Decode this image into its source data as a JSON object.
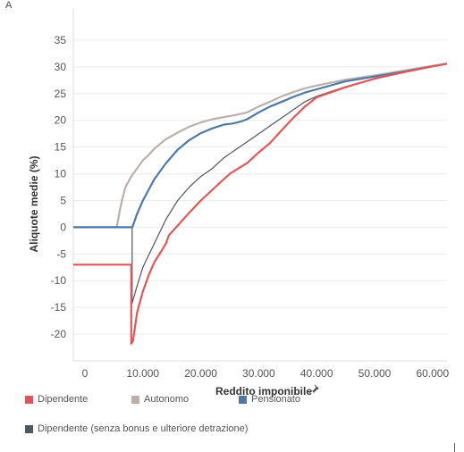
{
  "corner_mark": "A",
  "chart_data": {
    "type": "line",
    "xlabel": "Reddito imponibile",
    "xlabel_icon": "pin-icon",
    "ylabel": "Aliquote medie (%)",
    "xlim": [
      -2000,
      62500
    ],
    "ylim": [
      -25,
      37
    ],
    "x_ticks": [
      {
        "value": 0,
        "label": "0"
      },
      {
        "value": 10000,
        "label": "10.000"
      },
      {
        "value": 20000,
        "label": "20.000"
      },
      {
        "value": 30000,
        "label": "30.000"
      },
      {
        "value": 40000,
        "label": "40.000"
      },
      {
        "value": 50000,
        "label": "50.000"
      },
      {
        "value": 60000,
        "label": "60.000"
      }
    ],
    "y_ticks": [
      35,
      30,
      25,
      20,
      15,
      10,
      5,
      0,
      -5,
      -10,
      -15,
      -20
    ],
    "grid": "horizontal",
    "legend_position": "bottom",
    "series": [
      {
        "name": "Dipendente (senza bonus e ulteriore detrazione)",
        "color": "#4e5563",
        "width": 1.2,
        "points": [
          [
            -2000,
            0
          ],
          [
            8150,
            0
          ],
          [
            8150,
            -14.2
          ],
          [
            9000,
            -11
          ],
          [
            10000,
            -7.5
          ],
          [
            12000,
            -3
          ],
          [
            14000,
            1.5
          ],
          [
            16000,
            5
          ],
          [
            18000,
            7.5
          ],
          [
            20000,
            9.5
          ],
          [
            22000,
            11
          ],
          [
            24000,
            13
          ],
          [
            26000,
            14.5
          ],
          [
            28000,
            16
          ],
          [
            30000,
            17.5
          ],
          [
            32000,
            19
          ],
          [
            34000,
            20.5
          ],
          [
            36000,
            22
          ],
          [
            38000,
            23.5
          ],
          [
            40000,
            24.5
          ],
          [
            45000,
            26.3
          ],
          [
            50000,
            27.7
          ],
          [
            55000,
            29
          ],
          [
            60000,
            30.1
          ],
          [
            62500,
            30.6
          ]
        ]
      },
      {
        "name": "Autonomo",
        "color": "#bab0ac",
        "width": 2.2,
        "points": [
          [
            -2000,
            0
          ],
          [
            5500,
            0
          ],
          [
            6000,
            3
          ],
          [
            6500,
            5.5
          ],
          [
            7000,
            7.5
          ],
          [
            8000,
            9.5
          ],
          [
            9000,
            11
          ],
          [
            10000,
            12.5
          ],
          [
            11000,
            13.5
          ],
          [
            12000,
            14.7
          ],
          [
            14000,
            16.5
          ],
          [
            16000,
            17.7
          ],
          [
            18000,
            18.8
          ],
          [
            20000,
            19.6
          ],
          [
            22000,
            20.2
          ],
          [
            24000,
            20.6
          ],
          [
            26000,
            21
          ],
          [
            28000,
            21.5
          ],
          [
            30000,
            22.6
          ],
          [
            32000,
            23.5
          ],
          [
            34000,
            24.5
          ],
          [
            36000,
            25.3
          ],
          [
            38000,
            26
          ],
          [
            40000,
            26.5
          ],
          [
            45000,
            27.6
          ],
          [
            50000,
            28.4
          ],
          [
            55000,
            29.3
          ],
          [
            60000,
            30.2
          ],
          [
            62500,
            30.6
          ]
        ]
      },
      {
        "name": "Pensionato",
        "color": "#4e79a7",
        "width": 2.2,
        "points": [
          [
            -2000,
            0
          ],
          [
            8200,
            0
          ],
          [
            9000,
            2.5
          ],
          [
            10000,
            5
          ],
          [
            12000,
            9
          ],
          [
            14000,
            12
          ],
          [
            16000,
            14.5
          ],
          [
            18000,
            16.3
          ],
          [
            20000,
            17.6
          ],
          [
            22000,
            18.5
          ],
          [
            24000,
            19.2
          ],
          [
            25500,
            19.4
          ],
          [
            27000,
            19.8
          ],
          [
            28000,
            20.2
          ],
          [
            30000,
            21.5
          ],
          [
            32000,
            22.6
          ],
          [
            34000,
            23.5
          ],
          [
            36000,
            24.4
          ],
          [
            38000,
            25.2
          ],
          [
            40000,
            25.8
          ],
          [
            45000,
            27.3
          ],
          [
            50000,
            28.2
          ],
          [
            55000,
            29.1
          ],
          [
            60000,
            30.1
          ],
          [
            62500,
            30.6
          ]
        ]
      },
      {
        "name": "Dipendente",
        "color": "#e15759",
        "width": 2.2,
        "points": [
          [
            -2000,
            -7
          ],
          [
            8000,
            -7
          ],
          [
            8000,
            -21.8
          ],
          [
            8300,
            -21.2
          ],
          [
            9000,
            -16
          ],
          [
            10000,
            -12
          ],
          [
            11000,
            -9
          ],
          [
            12000,
            -6.5
          ],
          [
            13000,
            -4.8
          ],
          [
            14000,
            -3
          ],
          [
            14500,
            -1.5
          ],
          [
            16000,
            0.3
          ],
          [
            18000,
            2.7
          ],
          [
            20000,
            5
          ],
          [
            22000,
            7
          ],
          [
            24000,
            9
          ],
          [
            25000,
            10
          ],
          [
            26000,
            10.7
          ],
          [
            28000,
            12
          ],
          [
            30000,
            14
          ],
          [
            32000,
            15.8
          ],
          [
            34000,
            18.2
          ],
          [
            36000,
            20.5
          ],
          [
            38000,
            22.6
          ],
          [
            40000,
            24.3
          ],
          [
            45000,
            26.2
          ],
          [
            50000,
            27.8
          ],
          [
            55000,
            29
          ],
          [
            60000,
            30.1
          ],
          [
            62500,
            30.6
          ]
        ]
      }
    ]
  },
  "legend": [
    {
      "label": "Dipendente",
      "color": "#e15759"
    },
    {
      "label": "Autonomo",
      "color": "#bab0ac"
    },
    {
      "label": "Pensionato",
      "color": "#4e79a7"
    },
    {
      "label": "Dipendente (senza bonus e ulteriore detrazione)",
      "color": "#4e5563"
    }
  ]
}
